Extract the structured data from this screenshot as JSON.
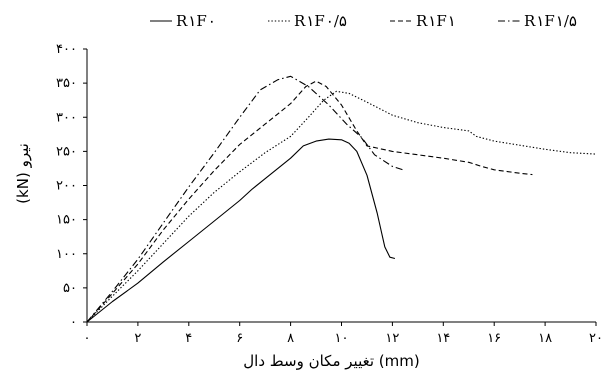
{
  "chart_data": {
    "type": "line",
    "xlabel": "(mm) تغییر مکان وسط دال",
    "ylabel": "(kN) نیرو",
    "xlim": [
      0,
      20
    ],
    "ylim": [
      0,
      400
    ],
    "x_ticks": [
      0,
      2,
      4,
      6,
      8,
      10,
      12,
      14,
      16,
      18,
      20
    ],
    "y_ticks": [
      0,
      50,
      100,
      150,
      200,
      250,
      300,
      350,
      400
    ],
    "x_tick_labels": [
      "۰",
      "۲",
      "۴",
      "۶",
      "۸",
      "۱۰",
      "۱۲",
      "۱۴",
      "۱۶",
      "۱۸",
      "۲۰"
    ],
    "y_tick_labels": [
      "۰",
      "۵۰",
      "۱۰۰",
      "۱۵۰",
      "۲۰۰",
      "۲۵۰",
      "۳۰۰",
      "۳۵۰",
      "۴۰۰"
    ],
    "grid": false,
    "legend_position": "top",
    "series": [
      {
        "name": "R۱F۰",
        "dash": "solid",
        "points": [
          [
            0,
            0
          ],
          [
            1,
            30
          ],
          [
            2,
            57
          ],
          [
            3,
            88
          ],
          [
            4,
            118
          ],
          [
            5,
            148
          ],
          [
            6,
            178
          ],
          [
            6.5,
            195
          ],
          [
            7,
            210
          ],
          [
            8,
            240
          ],
          [
            8.5,
            258
          ],
          [
            9,
            265
          ],
          [
            9.5,
            268
          ],
          [
            10,
            267
          ],
          [
            10.3,
            262
          ],
          [
            10.6,
            250
          ],
          [
            11,
            215
          ],
          [
            11.4,
            160
          ],
          [
            11.7,
            110
          ],
          [
            11.9,
            95
          ],
          [
            12.1,
            93
          ]
        ]
      },
      {
        "name": "R۱F۰/۵",
        "dash": "dotted",
        "points": [
          [
            0,
            0
          ],
          [
            1,
            38
          ],
          [
            2,
            75
          ],
          [
            3,
            115
          ],
          [
            4,
            155
          ],
          [
            5,
            190
          ],
          [
            6,
            220
          ],
          [
            7,
            248
          ],
          [
            8,
            272
          ],
          [
            8.7,
            300
          ],
          [
            9.3,
            325
          ],
          [
            9.8,
            338
          ],
          [
            10.3,
            335
          ],
          [
            11,
            322
          ],
          [
            12,
            303
          ],
          [
            13,
            292
          ],
          [
            14,
            285
          ],
          [
            15,
            280
          ],
          [
            15.3,
            272
          ],
          [
            16,
            265
          ],
          [
            17,
            259
          ],
          [
            18,
            253
          ],
          [
            19,
            248
          ],
          [
            20,
            246
          ]
        ]
      },
      {
        "name": "R۱F۱",
        "dash": "dashed",
        "points": [
          [
            0,
            0
          ],
          [
            1,
            42
          ],
          [
            2,
            85
          ],
          [
            3,
            135
          ],
          [
            4,
            180
          ],
          [
            5,
            222
          ],
          [
            6,
            260
          ],
          [
            7,
            290
          ],
          [
            8,
            320
          ],
          [
            8.6,
            345
          ],
          [
            9,
            353
          ],
          [
            9.4,
            345
          ],
          [
            10,
            318
          ],
          [
            10.6,
            280
          ],
          [
            11,
            258
          ],
          [
            12,
            250
          ],
          [
            13,
            245
          ],
          [
            14,
            240
          ],
          [
            15,
            234
          ],
          [
            15.5,
            228
          ],
          [
            16,
            223
          ],
          [
            17,
            218
          ],
          [
            17.5,
            216
          ]
        ]
      },
      {
        "name": "R۱F۱/۵",
        "dash": "dashdot",
        "points": [
          [
            0,
            0
          ],
          [
            1,
            45
          ],
          [
            2,
            92
          ],
          [
            3,
            145
          ],
          [
            4,
            198
          ],
          [
            5,
            248
          ],
          [
            6,
            300
          ],
          [
            6.8,
            340
          ],
          [
            7.5,
            355
          ],
          [
            8,
            360
          ],
          [
            8.7,
            345
          ],
          [
            9.5,
            318
          ],
          [
            10.2,
            290
          ],
          [
            10.8,
            270
          ],
          [
            11.3,
            245
          ],
          [
            12,
            228
          ],
          [
            12.5,
            222
          ]
        ]
      }
    ]
  }
}
